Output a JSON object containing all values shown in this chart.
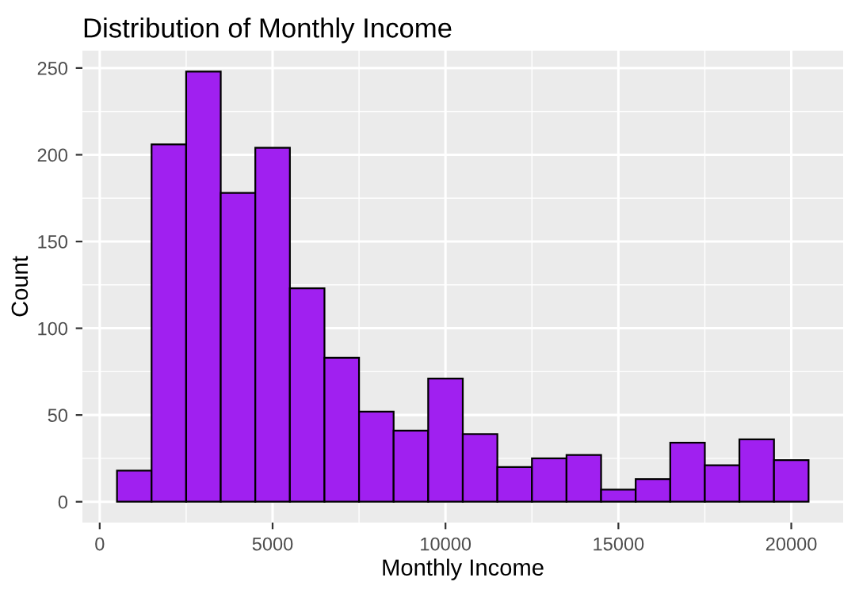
{
  "chart_data": {
    "type": "histogram",
    "title": "Distribution of Monthly Income",
    "xlabel": "Monthly Income",
    "ylabel": "Count",
    "bins": [
      500,
      1500,
      2500,
      3500,
      4500,
      5500,
      6500,
      7500,
      8500,
      9500,
      10500,
      11500,
      12500,
      13500,
      14500,
      15500,
      16500,
      17500,
      18500,
      19500,
      20500
    ],
    "values": [
      18,
      206,
      248,
      178,
      204,
      123,
      83,
      52,
      41,
      71,
      39,
      20,
      25,
      27,
      7,
      13,
      34,
      21,
      36,
      24
    ],
    "color": "#a020f0",
    "xlim": [
      -500,
      21500
    ],
    "ylim": [
      -12,
      260
    ],
    "xticks": [
      0,
      5000,
      10000,
      15000,
      20000
    ],
    "yticks": [
      0,
      50,
      100,
      150,
      200,
      250
    ],
    "grid": true
  }
}
